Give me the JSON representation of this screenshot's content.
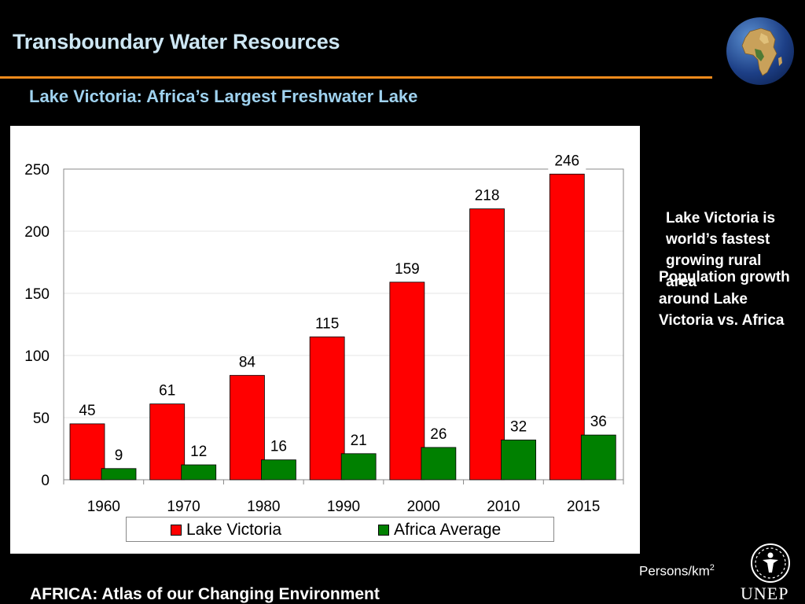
{
  "slide": {
    "title": "Transboundary Water Resources",
    "subtitle": "Lake Victoria: Africa’s Largest Freshwater Lake",
    "note_a": "Lake Victoria is world’s fastest growing rural area",
    "note_b": "Population growth around Lake Victoria vs. Africa",
    "units_text": "Persons/km",
    "units_sup": "2",
    "footer": "AFRICA: Atlas of our Changing Environment",
    "logo_text": "UNEP"
  },
  "colors": {
    "lake_victoria": "#ff0000",
    "africa_average": "#008000",
    "title_rule": "#f08a1c"
  },
  "chart_data": {
    "type": "bar",
    "categories": [
      "1960",
      "1970",
      "1980",
      "1990",
      "2000",
      "2010",
      "2015"
    ],
    "series": [
      {
        "name": "Lake Victoria",
        "values": [
          45,
          61,
          84,
          115,
          159,
          218,
          246
        ]
      },
      {
        "name": "Africa Average",
        "values": [
          9,
          12,
          16,
          21,
          26,
          32,
          36
        ]
      }
    ],
    "ylim": [
      0,
      250
    ],
    "yticks": [
      0,
      50,
      100,
      150,
      200,
      250
    ],
    "grid": true,
    "legend_position": "bottom",
    "title": "",
    "xlabel": "",
    "ylabel": ""
  }
}
